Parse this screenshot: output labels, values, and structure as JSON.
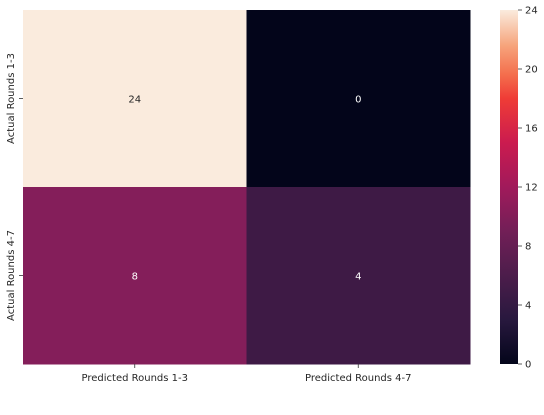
{
  "chart_data": {
    "type": "heatmap",
    "title": "",
    "x_categories": [
      "Predicted Rounds 1-3",
      "Predicted Rounds 4-7"
    ],
    "y_categories": [
      "Actual Rounds 1-3",
      "Actual Rounds 4-7"
    ],
    "values": [
      [
        24,
        0
      ],
      [
        8,
        4
      ]
    ],
    "cell_colors": [
      [
        "#faebdd",
        "#03051a"
      ],
      [
        "#841e5a",
        "#3e1a45"
      ]
    ],
    "colorbar": {
      "range": [
        0,
        24
      ],
      "ticks": [
        "0",
        "4",
        "8",
        "12",
        "16",
        "20",
        "24"
      ],
      "colorscale": "rocket"
    },
    "value_label_colors": {
      "on_light": "#262626",
      "on_dark": "#ffffff"
    }
  }
}
